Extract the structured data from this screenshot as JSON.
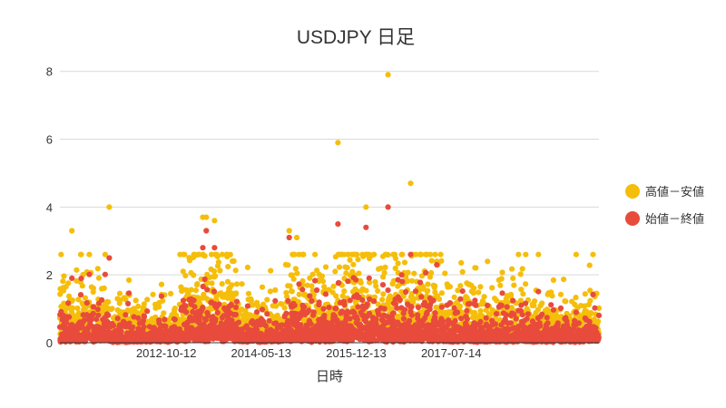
{
  "chart_data": {
    "type": "scatter",
    "title": "USDJPY 日足",
    "xlabel": "日時",
    "ylabel": "",
    "xlim": [
      "2011-01-03",
      "2019-12-31"
    ],
    "ylim": [
      0,
      8.5
    ],
    "y_ticks": [
      0,
      2,
      4,
      6,
      8
    ],
    "x_ticks": [
      "2012-10-12",
      "2014-05-13",
      "2015-12-13",
      "2017-07-14"
    ],
    "grid": true,
    "legend_position": "right",
    "series": [
      {
        "name": "高値－安値",
        "color": "#f5be0b",
        "notable_points": [
          {
            "x": "2011-03-17",
            "y": 3.3
          },
          {
            "x": "2011-10-31",
            "y": 4.0
          },
          {
            "x": "2013-05-23",
            "y": 3.7
          },
          {
            "x": "2013-06-13",
            "y": 3.7
          },
          {
            "x": "2013-08-02",
            "y": 3.6
          },
          {
            "x": "2014-10-31",
            "y": 3.3
          },
          {
            "x": "2014-12-16",
            "y": 3.1
          },
          {
            "x": "2015-08-24",
            "y": 5.9
          },
          {
            "x": "2016-02-11",
            "y": 4.0
          },
          {
            "x": "2016-06-24",
            "y": 7.9
          },
          {
            "x": "2016-11-09",
            "y": 4.7
          },
          {
            "x": "2017-04-17",
            "y": 2.4
          }
        ]
      },
      {
        "name": "始値－終値",
        "color": "#e84b3c",
        "notable_points": [
          {
            "x": "2011-03-17",
            "y": 1.9
          },
          {
            "x": "2011-10-31",
            "y": 2.5
          },
          {
            "x": "2013-05-23",
            "y": 2.8
          },
          {
            "x": "2013-06-13",
            "y": 3.3
          },
          {
            "x": "2013-08-02",
            "y": 2.8
          },
          {
            "x": "2014-10-31",
            "y": 3.1
          },
          {
            "x": "2015-08-24",
            "y": 3.5
          },
          {
            "x": "2016-02-11",
            "y": 3.4
          },
          {
            "x": "2016-06-24",
            "y": 4.0
          },
          {
            "x": "2016-11-09",
            "y": 2.6
          },
          {
            "x": "2017-04-17",
            "y": 2.3
          }
        ]
      }
    ]
  }
}
